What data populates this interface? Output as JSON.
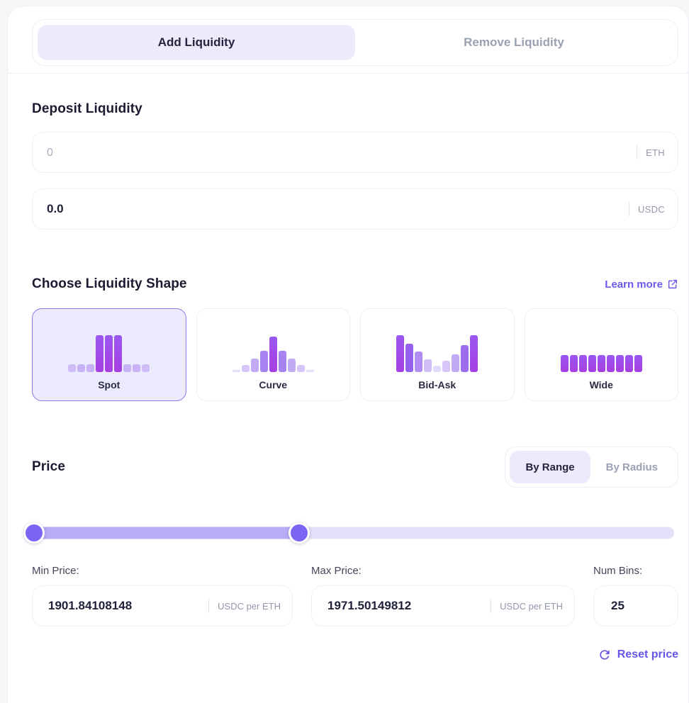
{
  "tabs": {
    "add": "Add Liquidity",
    "remove": "Remove Liquidity"
  },
  "deposit": {
    "title": "Deposit Liquidity",
    "inputs": [
      {
        "value": "0",
        "is_placeholder": true,
        "token": "ETH"
      },
      {
        "value": "0.0",
        "is_placeholder": false,
        "token": "USDC"
      }
    ]
  },
  "shape": {
    "title": "Choose Liquidity Shape",
    "learn_more_label": "Learn more",
    "options": [
      {
        "label": "Spot",
        "selected": true,
        "icon": {
          "heights": [
            11,
            11,
            11,
            52,
            52,
            52,
            11,
            11,
            11
          ],
          "colors": [
            "#cdbcf6",
            "#c6b2f5",
            "#c6b2f5",
            "grad",
            "grad",
            "grad",
            "#c6b2f5",
            "#c6b2f5",
            "#cdbcf6"
          ]
        }
      },
      {
        "label": "Curve",
        "selected": false,
        "icon": {
          "heights": [
            3,
            10,
            19,
            30,
            50,
            30,
            19,
            10,
            3
          ],
          "colors": [
            "#e6ddfb",
            "#d5c5f8",
            "#c2aaf5",
            "#a783f1",
            "grad",
            "#a783f1",
            "#c2aaf5",
            "#d5c5f8",
            "#e6ddfb"
          ]
        }
      },
      {
        "label": "Bid-Ask",
        "selected": false,
        "icon": {
          "heights": [
            52,
            40,
            29,
            18,
            9,
            16,
            25,
            38,
            52
          ],
          "colors": [
            "grad",
            "#9361ee",
            "#b18cf3",
            "#d0bdf7",
            "#e3d9fa",
            "#d5c5f8",
            "#c2aaf5",
            "#9c6cef",
            "grad"
          ]
        }
      },
      {
        "label": "Wide",
        "selected": false,
        "icon": {
          "heights": [
            24,
            24,
            24,
            24,
            24,
            24,
            24,
            24,
            24
          ],
          "colors": [
            "grad",
            "grad",
            "grad",
            "grad",
            "grad",
            "grad",
            "grad",
            "grad",
            "grad"
          ]
        }
      }
    ]
  },
  "price": {
    "title": "Price",
    "modes": [
      {
        "label": "By Range",
        "active": true
      },
      {
        "label": "By Radius",
        "active": false
      }
    ],
    "slider": {
      "min_pct": 0.3,
      "max_pct": 41.3
    },
    "min": {
      "label": "Min Price:",
      "value": "1901.84108148",
      "unit": "USDC per ETH"
    },
    "max": {
      "label": "Max Price:",
      "value": "1971.50149812",
      "unit": "USDC per ETH"
    },
    "bins": {
      "label": "Num Bins:",
      "value": "25"
    },
    "reset_label": "Reset price"
  },
  "colors": {
    "accent_purple": "#6a5ae8",
    "bar_gradient_top": "#9a57f2",
    "bar_gradient_bottom": "#a73ee0",
    "slider_fill": "#b9abf4",
    "slider_track": "#e4def8",
    "slider_handle": "#7b64f2",
    "active_pill_bg": "#ecebfc",
    "selected_card_bg": "#eceafd",
    "selected_card_border": "#8b78ea"
  }
}
